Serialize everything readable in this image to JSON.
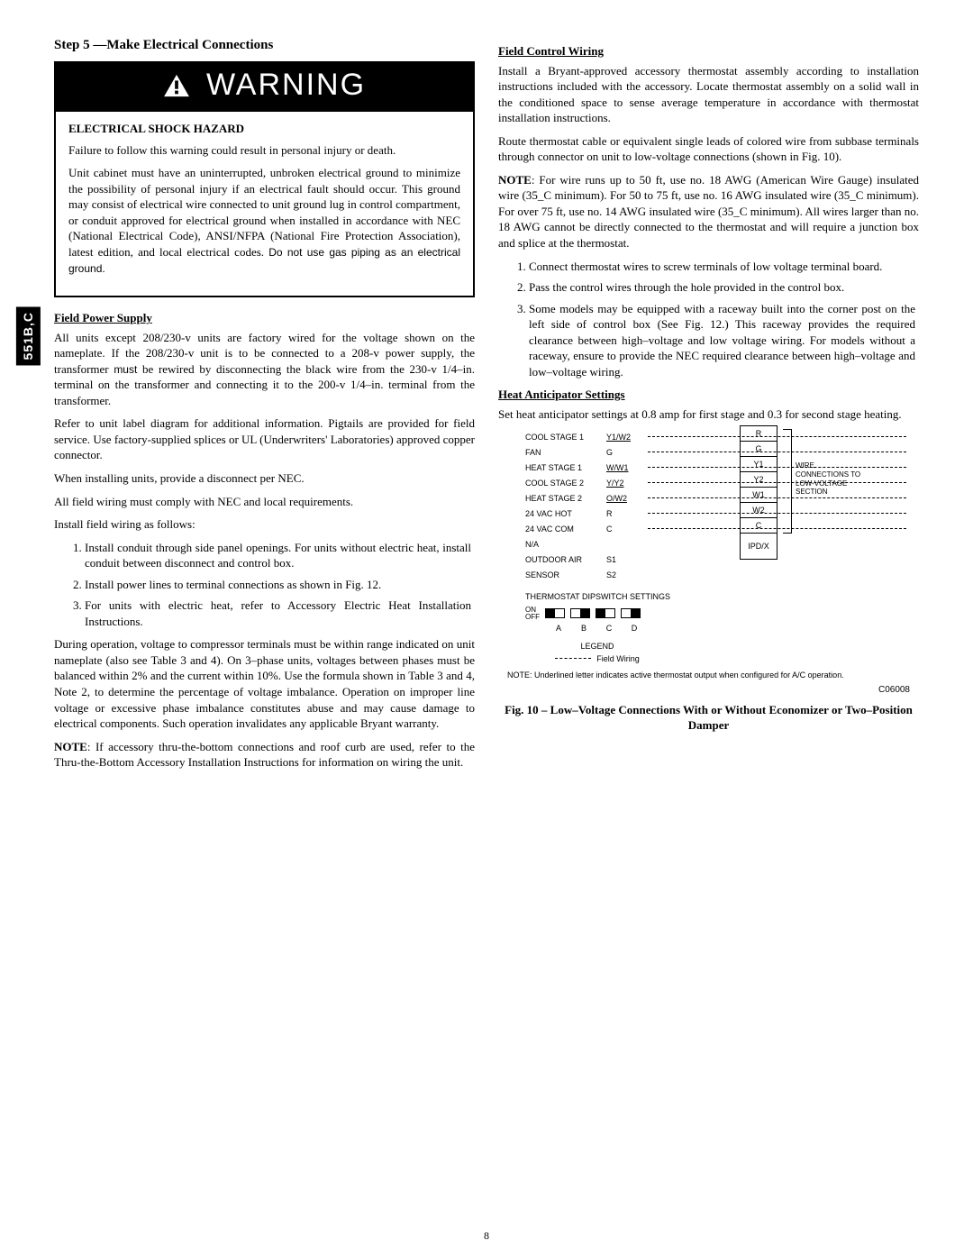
{
  "side_tab": "551B,C",
  "page_number": "8",
  "left": {
    "step_prefix": "Step 5 —",
    "step_title": "Make Electrical Connections",
    "warning": {
      "label": "WARNING",
      "hazard": "ELECTRICAL SHOCK HAZARD",
      "p1": "Failure to follow this warning could result in personal injury or death.",
      "p2a": "Unit cabinet must have an uninterrupted, unbroken electrical ground to minimize the possibility of personal injury if an electrical fault should occur. This ground may consist of electrical wire connected to unit ground lug in control compartment, or conduit approved for electrical ground when installed in accordance with NEC (National Electrical Code), ANSI/NFPA (National Fire Protection Association), latest edition, and local electrical codes.",
      "p2b": " Do not use gas piping as an electrical ground."
    },
    "fps_head": "Field Power Supply",
    "fps_p1a": "All units except 208/230-v units are factory wired for the voltage shown on the nameplate. If the 208/230-v unit is to be connected to a 208-v power supply, the transformer ",
    "fps_must": "must",
    "fps_p1b": " be rewired by disconnecting the black wire from the 230-v 1/4–in. terminal on the transformer and connecting it to the 200-v 1/4–in. terminal from the transformer.",
    "fps_p2": "Refer to unit label diagram for additional information. Pigtails are provided for field service. Use factory-supplied splices or UL (Underwriters' Laboratories) approved copper connector.",
    "fps_p3": "When installing units, provide a disconnect per NEC.",
    "fps_p4": "All field wiring must comply with NEC and local requirements.",
    "fps_p5": "Install field wiring as follows:",
    "fps_list": [
      "Install conduit through side panel openings. For units without electric heat, install conduit between disconnect and control box.",
      "Install power lines to terminal connections as shown in Fig. 12.",
      "For units with electric heat, refer to Accessory Electric Heat Installation Instructions."
    ],
    "op_p1": "During operation, voltage to compressor terminals must be within range indicated on unit nameplate (also see Table 3 and 4). On 3–phase units, voltages between phases must be balanced within 2% and the current within 10%. Use the formula shown in Table 3 and 4, Note 2, to determine the percentage of voltage imbalance. Operation on improper line voltage or excessive phase imbalance constitutes abuse and may cause damage to electrical components. Such operation invalidates any applicable Bryant warranty.",
    "op_note_label": "NOTE",
    "op_note": ":  If accessory thru-the-bottom connections and roof curb are used, refer to the Thru-the-Bottom Accessory Installation Instructions for information on wiring the unit."
  },
  "right": {
    "fcw_head": "Field Control Wiring",
    "fcw_p1": "Install a Bryant-approved accessory thermostat assembly according to installation instructions included with the accessory. Locate thermostat assembly on a solid wall in the conditioned space to sense average temperature in accordance with thermostat installation instructions.",
    "fcw_p2": "Route thermostat cable or equivalent single leads of colored wire from subbase terminals through connector on unit to low-voltage connections (shown in Fig. 10).",
    "fcw_note_label": "NOTE",
    "fcw_note": ":  For wire runs up to 50 ft, use no. 18 AWG (American Wire Gauge) insulated wire (35_C minimum). For 50 to 75 ft, use no. 16 AWG insulated wire (35_C minimum). For over 75 ft, use no. 14 AWG insulated wire (35_C minimum). All wires larger than no. 18 AWG cannot be directly connected to the thermostat and will require a junction box and splice at the thermostat.",
    "fcw_list": [
      "Connect thermostat wires to screw terminals of low voltage terminal board.",
      "Pass the control wires through the hole provided in the control box.",
      "Some models may be equipped with a raceway built into the corner post on the left side of control box (See Fig. 12.) This raceway provides the required clearance between high–voltage and low voltage wiring.  For models without a raceway, ensure to provide the NEC required clearance between high–voltage and low–voltage wiring."
    ],
    "has_head": "Heat Anticipator Settings",
    "has_p": "Set heat anticipator settings at 0.8 amp for first stage and 0.3 for second stage heating.",
    "diagram": {
      "rows": [
        {
          "label": "COOL STAGE 1",
          "code": "Y1/W2",
          "code_u": true
        },
        {
          "label": "FAN",
          "code": "G",
          "code_u": false
        },
        {
          "label": "HEAT STAGE 1",
          "code": "W/W1",
          "code_u": true
        },
        {
          "label": "COOL STAGE 2",
          "code": "Y/Y2",
          "code_u": true
        },
        {
          "label": "HEAT STAGE 2",
          "code": "O/W2",
          "code_u": true
        },
        {
          "label": "24 VAC HOT",
          "code": "R",
          "code_u": false
        },
        {
          "label": "24 VAC COM",
          "code": "C",
          "code_u": false
        },
        {
          "label": "N/A",
          "code": "",
          "code_u": false
        },
        {
          "label": "OUTDOOR AIR",
          "code": "S1",
          "code_u": false
        },
        {
          "label": "SENSOR",
          "code": "S2",
          "code_u": false
        }
      ],
      "terminals": [
        "R",
        "G",
        "Y1",
        "Y2",
        "W1",
        "W2",
        "C",
        "IPD/X"
      ],
      "bracket_label": "WIRE CONNECTIONS TO LOW-VOLTAGE SECTION",
      "dip_title": "THERMOSTAT DIPSWITCH SETTINGS",
      "dip_on": "ON",
      "dip_off": "OFF",
      "dip_labels": [
        "A",
        "B",
        "C",
        "D"
      ],
      "legend_title": "LEGEND",
      "legend_item": "Field Wiring",
      "fig_note": "NOTE: Underlined letter indicates active thermostat output when configured for A/C operation.",
      "fig_code": "C06008"
    },
    "fig_caption": "Fig. 10 – Low–Voltage Connections With or Without Economizer or Two–Position Damper"
  }
}
